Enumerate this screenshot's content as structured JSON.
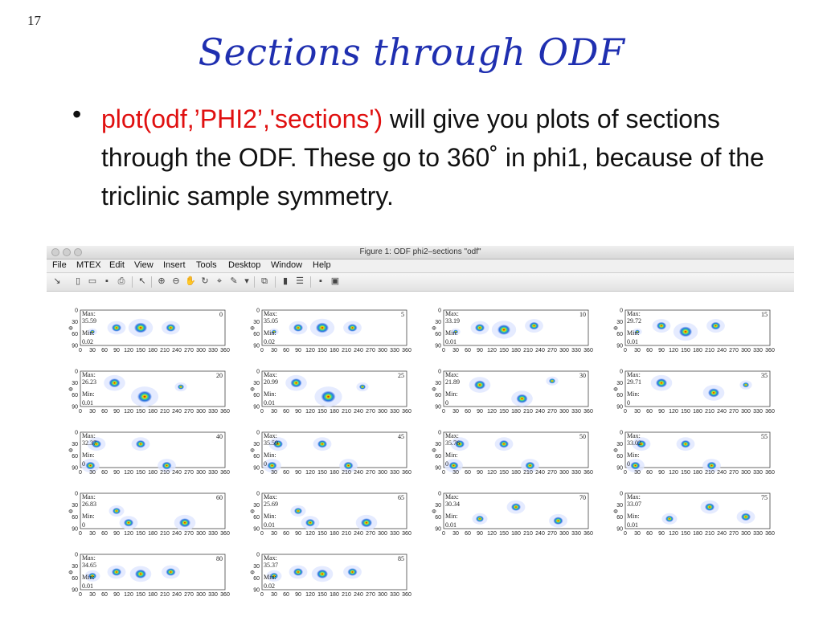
{
  "slide": {
    "number": "17",
    "title": "Sections through ODF",
    "bullet_code": "plot(odf,’PHI2’,'sections')",
    "bullet_text_1": " will give you plots of sections through the ODF.  These go to 360˚   in phi1, because of the triclinic sample symmetry."
  },
  "window": {
    "title": "Figure 1: ODF phi2–sections \"odf\"",
    "menu": [
      "File",
      "MTEX",
      "Edit",
      "View",
      "Insert",
      "Tools",
      "Desktop",
      "Window",
      "Help"
    ]
  },
  "figure": {
    "x_ticks": [
      "0",
      "30",
      "60",
      "90",
      "120",
      "150",
      "180",
      "210",
      "240",
      "270",
      "300",
      "330",
      "360"
    ],
    "y_ticks": [
      "0",
      "30",
      "60",
      "90"
    ],
    "y_label": "Φ",
    "max_label": "Max:",
    "min_label": "Min:",
    "panels": [
      {
        "phi2": "0",
        "max": "35.59",
        "min": "0.02",
        "peaks": [
          [
            30,
            55,
            3
          ],
          [
            90,
            45,
            6
          ],
          [
            150,
            45,
            8
          ],
          [
            225,
            45,
            6
          ]
        ]
      },
      {
        "phi2": "5",
        "max": "35.05",
        "min": "0.02",
        "peaks": [
          [
            30,
            55,
            3
          ],
          [
            90,
            45,
            6
          ],
          [
            150,
            45,
            8
          ],
          [
            225,
            45,
            6
          ]
        ]
      },
      {
        "phi2": "10",
        "max": "33.19",
        "min": "0.01",
        "peaks": [
          [
            30,
            55,
            3
          ],
          [
            90,
            45,
            6
          ],
          [
            150,
            50,
            8
          ],
          [
            225,
            40,
            6
          ]
        ]
      },
      {
        "phi2": "15",
        "max": "29.72",
        "min": "0.01",
        "peaks": [
          [
            30,
            55,
            3
          ],
          [
            90,
            40,
            6
          ],
          [
            150,
            55,
            8
          ],
          [
            225,
            40,
            6
          ]
        ]
      },
      {
        "phi2": "20",
        "max": "26.23",
        "min": "0.01",
        "peaks": [
          [
            85,
            30,
            7
          ],
          [
            160,
            65,
            9
          ],
          [
            250,
            40,
            4
          ]
        ]
      },
      {
        "phi2": "25",
        "max": "20.99",
        "min": "0.01",
        "peaks": [
          [
            85,
            30,
            7
          ],
          [
            165,
            65,
            9
          ],
          [
            250,
            40,
            4
          ]
        ]
      },
      {
        "phi2": "30",
        "max": "21.89",
        "min": "0",
        "peaks": [
          [
            90,
            35,
            7
          ],
          [
            195,
            70,
            7
          ],
          [
            270,
            25,
            4
          ]
        ]
      },
      {
        "phi2": "35",
        "max": "29.71",
        "min": "0",
        "peaks": [
          [
            90,
            30,
            7
          ],
          [
            220,
            55,
            7
          ],
          [
            300,
            35,
            4
          ]
        ]
      },
      {
        "phi2": "40",
        "max": "32.37",
        "min": "0",
        "peaks": [
          [
            40,
            30,
            6
          ],
          [
            150,
            30,
            6
          ],
          [
            25,
            85,
            6
          ],
          [
            215,
            85,
            6
          ]
        ]
      },
      {
        "phi2": "45",
        "max": "35.59",
        "min": "0",
        "peaks": [
          [
            40,
            30,
            6
          ],
          [
            150,
            30,
            6
          ],
          [
            25,
            85,
            6
          ],
          [
            215,
            85,
            6
          ]
        ]
      },
      {
        "phi2": "50",
        "max": "35.76",
        "min": "0",
        "peaks": [
          [
            40,
            30,
            6
          ],
          [
            150,
            30,
            6
          ],
          [
            25,
            85,
            6
          ],
          [
            215,
            85,
            6
          ]
        ]
      },
      {
        "phi2": "55",
        "max": "33.02",
        "min": "0",
        "peaks": [
          [
            40,
            30,
            6
          ],
          [
            150,
            30,
            6
          ],
          [
            25,
            85,
            6
          ],
          [
            215,
            85,
            6
          ]
        ]
      },
      {
        "phi2": "60",
        "max": "26.83",
        "min": "0",
        "peaks": [
          [
            90,
            45,
            5
          ],
          [
            120,
            75,
            6
          ],
          [
            260,
            75,
            7
          ]
        ]
      },
      {
        "phi2": "65",
        "max": "25.69",
        "min": "0.01",
        "peaks": [
          [
            90,
            45,
            5
          ],
          [
            120,
            75,
            6
          ],
          [
            260,
            75,
            7
          ]
        ]
      },
      {
        "phi2": "70",
        "max": "30.34",
        "min": "0.01",
        "peaks": [
          [
            90,
            65,
            5
          ],
          [
            180,
            35,
            6
          ],
          [
            285,
            70,
            6
          ]
        ]
      },
      {
        "phi2": "75",
        "max": "33.07",
        "min": "0.01",
        "peaks": [
          [
            110,
            65,
            5
          ],
          [
            210,
            35,
            6
          ],
          [
            300,
            60,
            6
          ]
        ]
      },
      {
        "phi2": "80",
        "max": "34.65",
        "min": "0.01",
        "peaks": [
          [
            30,
            55,
            5
          ],
          [
            90,
            45,
            6
          ],
          [
            150,
            50,
            7
          ],
          [
            225,
            45,
            6
          ]
        ]
      },
      {
        "phi2": "85",
        "max": "35.37",
        "min": "0.02",
        "peaks": [
          [
            30,
            55,
            5
          ],
          [
            90,
            45,
            6
          ],
          [
            150,
            50,
            7
          ],
          [
            225,
            45,
            6
          ]
        ]
      }
    ]
  }
}
